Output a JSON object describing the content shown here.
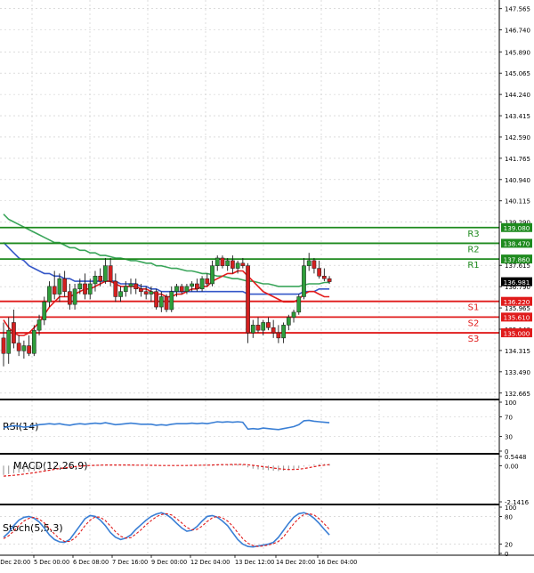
{
  "colors": {
    "background": "#ffffff",
    "grid": "#c8c8c8",
    "candle_up": "#2e9e3a",
    "candle_down": "#d42020",
    "ma_fast": "#e31b1b",
    "ma_mid": "#3557c8",
    "ma_slow": "#3aa55a",
    "resistance": "#1e8a1e",
    "support": "#e01b1b",
    "price_tag_bg": "#000000",
    "indicator_line": "#3a7fd5",
    "macd_hist": "#909090",
    "macd_signal": "#e01b1b",
    "stoch_main": "#3a7fd5",
    "stoch_signal": "#e01b1b",
    "separator": "#000000"
  },
  "price_axis_labels": [
    "147.565",
    "146.740",
    "145.890",
    "145.065",
    "144.240",
    "143.415",
    "142.590",
    "141.765",
    "140.940",
    "140.115",
    "139.290",
    "137.615",
    "136.790",
    "135.965",
    "135.140",
    "134.315",
    "133.490",
    "132.665"
  ],
  "levels": [
    {
      "name": "R3",
      "value": "139.080",
      "type": "resistance"
    },
    {
      "name": "R2",
      "value": "138.470",
      "type": "resistance"
    },
    {
      "name": "R1",
      "value": "137.860",
      "type": "resistance"
    },
    {
      "name": "S1",
      "value": "136.220",
      "type": "support"
    },
    {
      "name": "S2",
      "value": "135.610",
      "type": "support"
    },
    {
      "name": "S3",
      "value": "135.000",
      "type": "support"
    }
  ],
  "current_price": "136.981",
  "indicators": {
    "rsi": {
      "label": "RSI(14)",
      "axis": [
        "100",
        "70",
        "30",
        "0"
      ]
    },
    "macd": {
      "label": "MACD(12,26,9)",
      "axis": [
        "0.5448",
        "0.00",
        "-2.1416"
      ]
    },
    "stoch": {
      "label": "Stoch(5,5,3)",
      "axis": [
        "100",
        "80",
        "20",
        "0"
      ]
    }
  },
  "time_labels": [
    "4 Dec 20:00",
    "5 Dec 00:00",
    "6 Dec 08:00",
    "7 Dec 16:00",
    "9 Dec 00:00",
    "12 Dec 04:00",
    "13 Dec 12:00",
    "14 Dec 20:00",
    "16 Dec 04:00"
  ],
  "chart_data": [
    {
      "type": "candlestick",
      "title": "",
      "candles": [
        {
          "o": 134.8,
          "h": 135.4,
          "l": 133.7,
          "c": 134.2
        },
        {
          "o": 134.2,
          "h": 135.6,
          "l": 133.8,
          "c": 135.1
        },
        {
          "o": 135.4,
          "h": 135.9,
          "l": 134.4,
          "c": 134.6
        },
        {
          "o": 134.6,
          "h": 134.9,
          "l": 134.1,
          "c": 134.3
        },
        {
          "o": 134.3,
          "h": 134.7,
          "l": 134.0,
          "c": 134.5
        },
        {
          "o": 134.5,
          "h": 134.9,
          "l": 134.1,
          "c": 134.2
        },
        {
          "o": 134.2,
          "h": 135.3,
          "l": 134.1,
          "c": 135.1
        },
        {
          "o": 135.1,
          "h": 135.7,
          "l": 134.9,
          "c": 135.5
        },
        {
          "o": 135.5,
          "h": 136.4,
          "l": 135.3,
          "c": 136.2
        },
        {
          "o": 136.2,
          "h": 137.0,
          "l": 136.0,
          "c": 136.8
        },
        {
          "o": 136.8,
          "h": 137.4,
          "l": 136.3,
          "c": 136.5
        },
        {
          "o": 136.5,
          "h": 137.3,
          "l": 136.2,
          "c": 137.1
        },
        {
          "o": 137.1,
          "h": 137.4,
          "l": 136.4,
          "c": 136.6
        },
        {
          "o": 136.6,
          "h": 136.9,
          "l": 135.9,
          "c": 136.1
        },
        {
          "o": 136.1,
          "h": 136.9,
          "l": 135.9,
          "c": 136.7
        },
        {
          "o": 136.7,
          "h": 137.1,
          "l": 136.5,
          "c": 136.9
        },
        {
          "o": 136.9,
          "h": 137.3,
          "l": 136.3,
          "c": 136.5
        },
        {
          "o": 136.5,
          "h": 137.1,
          "l": 136.3,
          "c": 136.9
        },
        {
          "o": 136.9,
          "h": 137.4,
          "l": 136.6,
          "c": 137.2
        },
        {
          "o": 137.2,
          "h": 137.5,
          "l": 136.8,
          "c": 137.0
        },
        {
          "o": 137.0,
          "h": 137.9,
          "l": 136.9,
          "c": 137.6
        },
        {
          "o": 137.6,
          "h": 137.9,
          "l": 136.8,
          "c": 137.0
        },
        {
          "o": 137.0,
          "h": 137.3,
          "l": 136.2,
          "c": 136.4
        },
        {
          "o": 136.4,
          "h": 136.8,
          "l": 136.2,
          "c": 136.6
        },
        {
          "o": 136.6,
          "h": 137.0,
          "l": 136.4,
          "c": 136.8
        },
        {
          "o": 136.8,
          "h": 137.1,
          "l": 136.5,
          "c": 136.9
        },
        {
          "o": 136.9,
          "h": 137.1,
          "l": 136.5,
          "c": 136.7
        },
        {
          "o": 136.7,
          "h": 136.9,
          "l": 136.4,
          "c": 136.6
        },
        {
          "o": 136.6,
          "h": 136.8,
          "l": 136.3,
          "c": 136.5
        },
        {
          "o": 136.5,
          "h": 136.8,
          "l": 136.2,
          "c": 136.6
        },
        {
          "o": 136.6,
          "h": 136.7,
          "l": 135.9,
          "c": 136.0
        },
        {
          "o": 136.0,
          "h": 136.6,
          "l": 135.8,
          "c": 136.4
        },
        {
          "o": 136.4,
          "h": 136.5,
          "l": 135.8,
          "c": 135.9
        },
        {
          "o": 135.9,
          "h": 136.8,
          "l": 135.8,
          "c": 136.6
        },
        {
          "o": 136.6,
          "h": 136.9,
          "l": 136.4,
          "c": 136.8
        },
        {
          "o": 136.8,
          "h": 136.9,
          "l": 136.5,
          "c": 136.6
        },
        {
          "o": 136.6,
          "h": 136.9,
          "l": 136.5,
          "c": 136.8
        },
        {
          "o": 136.8,
          "h": 137.0,
          "l": 136.6,
          "c": 136.9
        },
        {
          "o": 136.9,
          "h": 137.1,
          "l": 136.6,
          "c": 136.7
        },
        {
          "o": 136.7,
          "h": 137.2,
          "l": 136.6,
          "c": 137.1
        },
        {
          "o": 137.1,
          "h": 137.3,
          "l": 136.8,
          "c": 136.9
        },
        {
          "o": 136.9,
          "h": 137.8,
          "l": 136.8,
          "c": 137.6
        },
        {
          "o": 137.6,
          "h": 138.0,
          "l": 137.4,
          "c": 137.9
        },
        {
          "o": 137.9,
          "h": 138.0,
          "l": 137.5,
          "c": 137.6
        },
        {
          "o": 137.6,
          "h": 137.9,
          "l": 137.4,
          "c": 137.8
        },
        {
          "o": 137.8,
          "h": 138.0,
          "l": 137.3,
          "c": 137.5
        },
        {
          "o": 137.5,
          "h": 137.8,
          "l": 137.3,
          "c": 137.7
        },
        {
          "o": 137.7,
          "h": 137.9,
          "l": 137.5,
          "c": 137.6
        },
        {
          "o": 137.6,
          "h": 137.7,
          "l": 134.6,
          "c": 135.0
        },
        {
          "o": 135.0,
          "h": 135.5,
          "l": 134.8,
          "c": 135.3
        },
        {
          "o": 135.3,
          "h": 135.6,
          "l": 135.0,
          "c": 135.1
        },
        {
          "o": 135.1,
          "h": 135.5,
          "l": 134.9,
          "c": 135.4
        },
        {
          "o": 135.4,
          "h": 135.6,
          "l": 135.1,
          "c": 135.2
        },
        {
          "o": 135.2,
          "h": 135.5,
          "l": 134.8,
          "c": 135.0
        },
        {
          "o": 135.0,
          "h": 135.3,
          "l": 134.6,
          "c": 134.8
        },
        {
          "o": 134.8,
          "h": 135.4,
          "l": 134.6,
          "c": 135.3
        },
        {
          "o": 135.3,
          "h": 135.7,
          "l": 135.1,
          "c": 135.6
        },
        {
          "o": 135.6,
          "h": 135.9,
          "l": 135.4,
          "c": 135.8
        },
        {
          "o": 135.8,
          "h": 136.5,
          "l": 135.7,
          "c": 136.4
        },
        {
          "o": 136.4,
          "h": 137.9,
          "l": 136.3,
          "c": 137.6
        },
        {
          "o": 137.6,
          "h": 138.1,
          "l": 137.4,
          "c": 137.8
        },
        {
          "o": 137.8,
          "h": 137.9,
          "l": 137.3,
          "c": 137.5
        },
        {
          "o": 137.5,
          "h": 137.8,
          "l": 137.1,
          "c": 137.2
        },
        {
          "o": 137.2,
          "h": 137.5,
          "l": 137.0,
          "c": 137.1
        },
        {
          "o": 137.1,
          "h": 137.2,
          "l": 136.9,
          "c": 136.981
        }
      ],
      "ma_fast": [
        135.5,
        135.2,
        135.0,
        134.9,
        134.9,
        135.0,
        135.2,
        135.4,
        135.7,
        136.0,
        136.2,
        136.4,
        136.4,
        136.4,
        136.5,
        136.6,
        136.7,
        136.7,
        136.8,
        136.9,
        137.0,
        137.0,
        136.9,
        136.8,
        136.8,
        136.8,
        136.8,
        136.7,
        136.7,
        136.6,
        136.5,
        136.5,
        136.4,
        136.4,
        136.5,
        136.5,
        136.6,
        136.7,
        136.7,
        136.8,
        136.8,
        137.0,
        137.1,
        137.2,
        137.3,
        137.3,
        137.4,
        137.4,
        137.2,
        137.0,
        136.8,
        136.6,
        136.5,
        136.4,
        136.3,
        136.2,
        136.2,
        136.2,
        136.3,
        136.5,
        136.6,
        136.6,
        136.5,
        136.4,
        136.4
      ],
      "ma_mid": [
        138.5,
        138.3,
        138.1,
        137.9,
        137.8,
        137.6,
        137.5,
        137.4,
        137.3,
        137.3,
        137.2,
        137.2,
        137.1,
        137.1,
        137.0,
        137.0,
        137.0,
        137.0,
        137.0,
        137.0,
        137.0,
        137.0,
        137.0,
        136.9,
        136.9,
        136.9,
        136.9,
        136.8,
        136.8,
        136.7,
        136.7,
        136.6,
        136.6,
        136.6,
        136.6,
        136.6,
        136.6,
        136.6,
        136.6,
        136.6,
        136.6,
        136.6,
        136.6,
        136.6,
        136.6,
        136.6,
        136.6,
        136.6,
        136.5,
        136.5,
        136.5,
        136.5,
        136.5,
        136.5,
        136.5,
        136.5,
        136.5,
        136.5,
        136.5,
        136.6,
        136.6,
        136.6,
        136.7,
        136.7,
        136.7
      ],
      "ma_slow": [
        139.6,
        139.4,
        139.3,
        139.2,
        139.1,
        139.0,
        138.9,
        138.8,
        138.7,
        138.6,
        138.5,
        138.5,
        138.4,
        138.3,
        138.3,
        138.2,
        138.2,
        138.1,
        138.1,
        138.0,
        138.0,
        137.95,
        137.9,
        137.9,
        137.85,
        137.8,
        137.8,
        137.75,
        137.7,
        137.7,
        137.6,
        137.6,
        137.55,
        137.5,
        137.5,
        137.45,
        137.4,
        137.4,
        137.35,
        137.3,
        137.3,
        137.25,
        137.2,
        137.2,
        137.15,
        137.1,
        137.1,
        137.05,
        137.0,
        137.0,
        136.95,
        136.9,
        136.9,
        136.85,
        136.8,
        136.8,
        136.8,
        136.8,
        136.8,
        136.85,
        136.9,
        136.9,
        136.9,
        136.95,
        136.95
      ],
      "rsi": [
        48,
        50,
        52,
        51,
        49,
        50,
        52,
        54,
        55,
        56,
        55,
        56,
        54,
        53,
        55,
        56,
        55,
        56,
        57,
        56,
        58,
        56,
        54,
        55,
        56,
        57,
        56,
        55,
        55,
        55,
        53,
        54,
        53,
        55,
        56,
        56,
        56,
        57,
        56,
        57,
        56,
        58,
        60,
        59,
        60,
        59,
        60,
        59,
        45,
        46,
        45,
        47,
        46,
        45,
        44,
        46,
        48,
        50,
        54,
        62,
        63,
        61,
        60,
        59,
        58
      ],
      "macd_hist": [
        -0.55,
        -0.5,
        -0.45,
        -0.42,
        -0.38,
        -0.35,
        -0.3,
        -0.25,
        -0.2,
        -0.15,
        -0.1,
        -0.06,
        -0.04,
        -0.03,
        -0.01,
        0.0,
        0.01,
        0.02,
        0.03,
        0.04,
        0.05,
        0.06,
        0.05,
        0.04,
        0.04,
        0.03,
        0.03,
        0.03,
        0.02,
        0.02,
        0.01,
        0.01,
        0.0,
        0.0,
        0.01,
        0.01,
        0.02,
        0.02,
        0.03,
        0.04,
        0.05,
        0.06,
        0.07,
        0.08,
        0.08,
        0.08,
        0.08,
        0.07,
        -0.1,
        -0.18,
        -0.22,
        -0.25,
        -0.27,
        -0.3,
        -0.32,
        -0.3,
        -0.27,
        -0.22,
        -0.15,
        -0.05,
        0.03,
        0.07,
        0.09,
        0.1,
        0.1
      ],
      "macd_signal": [
        -0.62,
        -0.6,
        -0.57,
        -0.54,
        -0.5,
        -0.46,
        -0.42,
        -0.37,
        -0.32,
        -0.27,
        -0.22,
        -0.17,
        -0.13,
        -0.09,
        -0.06,
        -0.03,
        -0.01,
        0.01,
        0.02,
        0.03,
        0.04,
        0.04,
        0.04,
        0.04,
        0.04,
        0.04,
        0.03,
        0.03,
        0.03,
        0.02,
        0.02,
        0.01,
        0.01,
        0.01,
        0.01,
        0.01,
        0.01,
        0.02,
        0.02,
        0.03,
        0.03,
        0.04,
        0.05,
        0.06,
        0.06,
        0.07,
        0.07,
        0.07,
        0.05,
        0.02,
        -0.02,
        -0.06,
        -0.1,
        -0.14,
        -0.18,
        -0.21,
        -0.23,
        -0.23,
        -0.21,
        -0.17,
        -0.12,
        -0.06,
        -0.01,
        0.03,
        0.06
      ],
      "stoch_main": [
        35,
        45,
        60,
        72,
        78,
        80,
        76,
        68,
        55,
        40,
        30,
        25,
        24,
        30,
        45,
        60,
        75,
        82,
        80,
        72,
        60,
        45,
        35,
        30,
        33,
        40,
        52,
        62,
        72,
        80,
        85,
        88,
        84,
        76,
        65,
        55,
        48,
        50,
        58,
        70,
        80,
        82,
        78,
        70,
        60,
        45,
        30,
        20,
        15,
        14,
        16,
        18,
        20,
        24,
        35,
        50,
        65,
        78,
        86,
        88,
        84,
        76,
        65,
        52,
        40
      ],
      "stoch_signal": [
        32,
        38,
        48,
        60,
        70,
        76,
        78,
        74,
        66,
        54,
        42,
        32,
        26,
        26,
        33,
        45,
        60,
        72,
        79,
        78,
        71,
        59,
        47,
        37,
        33,
        34,
        42,
        51,
        62,
        71,
        79,
        84,
        86,
        83,
        75,
        66,
        56,
        51,
        52,
        59,
        69,
        77,
        80,
        77,
        70,
        59,
        45,
        32,
        22,
        17,
        15,
        16,
        18,
        21,
        26,
        36,
        50,
        64,
        76,
        84,
        86,
        83,
        75,
        64,
        52
      ]
    }
  ]
}
